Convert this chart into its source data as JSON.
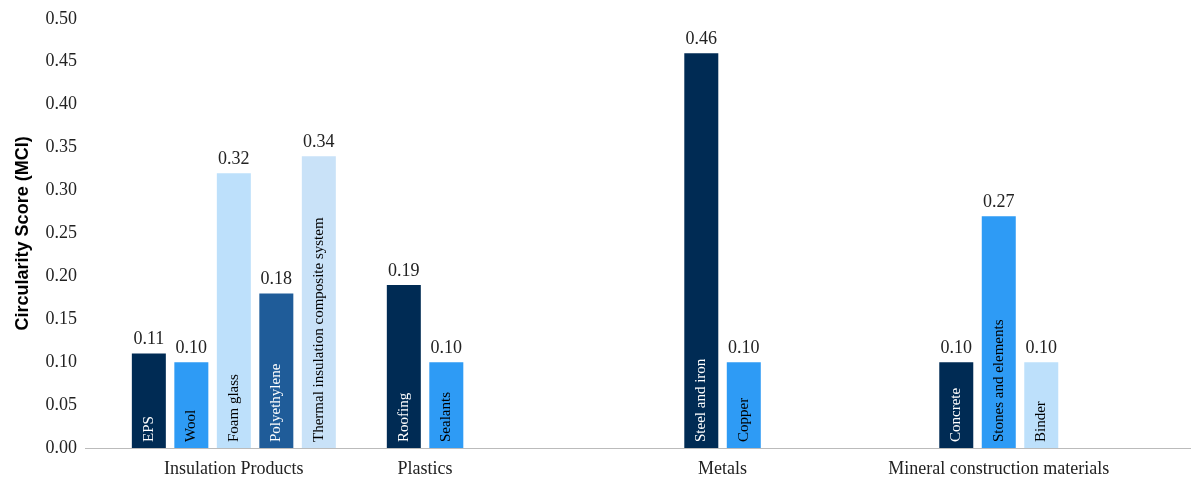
{
  "chart_data": {
    "type": "bar",
    "ylabel": "Circularity Score (MCI)",
    "categories": [
      null,
      "EPS",
      "Wool",
      "Foam glass",
      "Polyethylene",
      "Thermal insulation composite system",
      null,
      "Roofing",
      "Sealants",
      null,
      null,
      null,
      null,
      null,
      "Steel and iron",
      "Copper",
      null,
      null,
      null,
      null,
      "Concrete",
      "Stones and elements",
      "Binder",
      null,
      null,
      null
    ],
    "values": [
      null,
      0.11,
      0.1,
      0.32,
      0.18,
      0.34,
      null,
      0.19,
      0.1,
      null,
      null,
      null,
      null,
      null,
      0.46,
      0.1,
      null,
      null,
      null,
      null,
      0.1,
      0.27,
      0.1,
      null,
      null,
      null
    ],
    "value_labels": [
      null,
      "0.11",
      "0.10",
      "0.32",
      "0.18",
      "0.34",
      null,
      "0.19",
      "0.10",
      null,
      null,
      null,
      null,
      null,
      "0.46",
      "0.10",
      null,
      null,
      null,
      null,
      "0.10",
      "0.27",
      "0.10",
      null,
      null,
      null
    ],
    "colors": [
      null,
      "#002b54",
      "#2e9bf5",
      "#bde0fb",
      "#1f5c99",
      "#c9e2f8",
      null,
      "#002b54",
      "#2e9bf5",
      null,
      null,
      null,
      null,
      null,
      "#002b54",
      "#2e9bf5",
      null,
      null,
      null,
      null,
      "#002b54",
      "#2e9bf5",
      "#bde0fb",
      null,
      null,
      null
    ],
    "ylim": [
      0,
      0.5
    ],
    "yticks": [
      {
        "value": 0,
        "label": "0.00"
      },
      {
        "value": 0.05,
        "label": "0.05"
      },
      {
        "value": 0.1,
        "label": "0.10"
      },
      {
        "value": 0.15,
        "label": "0.15"
      },
      {
        "value": 0.2,
        "label": "0.20"
      },
      {
        "value": 0.25,
        "label": "0.25"
      },
      {
        "value": 0.3,
        "label": "0.30"
      },
      {
        "value": 0.35,
        "label": "0.35"
      },
      {
        "value": 0.4,
        "label": "0.40"
      },
      {
        "value": 0.45,
        "label": "0.45"
      },
      {
        "value": 0.5,
        "label": "0.50"
      }
    ],
    "annotations": [
      "Insulation Products",
      "Plastics",
      "Metals",
      "Mineral construction materials"
    ],
    "grid": false,
    "legend": false
  }
}
